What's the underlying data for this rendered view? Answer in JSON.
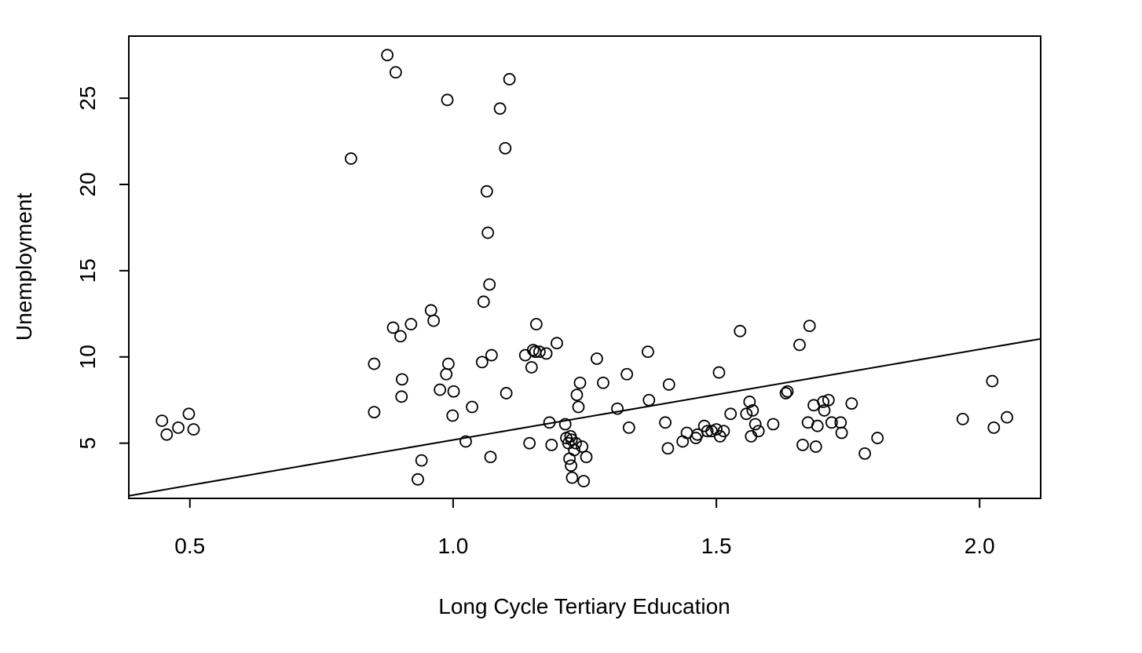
{
  "chart_data": {
    "type": "scatter",
    "title": "",
    "xlabel": "Long Cycle Tertiary Education",
    "ylabel": "Unemployment",
    "xlim": [
      0.384,
      2.116
    ],
    "ylim": [
      1.8,
      28.6
    ],
    "xticks": [
      0.5,
      1.0,
      1.5,
      2.0
    ],
    "xtick_labels": [
      "0.5",
      "1.0",
      "1.5",
      "2.0"
    ],
    "yticks": [
      5,
      10,
      15,
      20,
      25
    ],
    "ytick_labels": [
      "5",
      "10",
      "15",
      "20",
      "25"
    ],
    "grid": false,
    "legend": "none",
    "marker": "open-circle",
    "colors": {
      "marker": "#000000",
      "line": "#000000",
      "axis": "#000000"
    },
    "regression_line": {
      "x": [
        0.384,
        2.116
      ],
      "y": [
        1.95,
        11.05
      ]
    },
    "points": [
      {
        "x": 0.447,
        "y": 6.3
      },
      {
        "x": 0.456,
        "y": 5.5
      },
      {
        "x": 0.478,
        "y": 5.9
      },
      {
        "x": 0.498,
        "y": 6.7
      },
      {
        "x": 0.507,
        "y": 5.8
      },
      {
        "x": 0.806,
        "y": 21.5
      },
      {
        "x": 0.85,
        "y": 9.6
      },
      {
        "x": 0.85,
        "y": 6.8
      },
      {
        "x": 0.875,
        "y": 27.5
      },
      {
        "x": 0.886,
        "y": 11.7
      },
      {
        "x": 0.891,
        "y": 26.5
      },
      {
        "x": 0.9,
        "y": 11.2
      },
      {
        "x": 0.902,
        "y": 7.7
      },
      {
        "x": 0.903,
        "y": 8.7
      },
      {
        "x": 0.92,
        "y": 11.9
      },
      {
        "x": 0.933,
        "y": 2.9
      },
      {
        "x": 0.94,
        "y": 4.0
      },
      {
        "x": 0.958,
        "y": 12.7
      },
      {
        "x": 0.963,
        "y": 12.1
      },
      {
        "x": 0.975,
        "y": 8.1
      },
      {
        "x": 0.987,
        "y": 9.0
      },
      {
        "x": 0.989,
        "y": 24.9
      },
      {
        "x": 0.991,
        "y": 9.6
      },
      {
        "x": 0.999,
        "y": 6.6
      },
      {
        "x": 1.001,
        "y": 8.0
      },
      {
        "x": 1.024,
        "y": 5.1
      },
      {
        "x": 1.036,
        "y": 7.1
      },
      {
        "x": 1.055,
        "y": 9.7
      },
      {
        "x": 1.058,
        "y": 13.2
      },
      {
        "x": 1.064,
        "y": 19.6
      },
      {
        "x": 1.066,
        "y": 17.2
      },
      {
        "x": 1.069,
        "y": 14.2
      },
      {
        "x": 1.071,
        "y": 4.2
      },
      {
        "x": 1.073,
        "y": 10.1
      },
      {
        "x": 1.089,
        "y": 24.4
      },
      {
        "x": 1.099,
        "y": 22.1
      },
      {
        "x": 1.101,
        "y": 7.9
      },
      {
        "x": 1.107,
        "y": 26.1
      },
      {
        "x": 1.137,
        "y": 10.1
      },
      {
        "x": 1.145,
        "y": 5.0
      },
      {
        "x": 1.149,
        "y": 9.4
      },
      {
        "x": 1.152,
        "y": 10.4
      },
      {
        "x": 1.156,
        "y": 10.3
      },
      {
        "x": 1.158,
        "y": 11.9
      },
      {
        "x": 1.164,
        "y": 10.3
      },
      {
        "x": 1.177,
        "y": 10.2
      },
      {
        "x": 1.183,
        "y": 6.2
      },
      {
        "x": 1.187,
        "y": 4.9
      },
      {
        "x": 1.197,
        "y": 10.8
      },
      {
        "x": 1.213,
        "y": 6.1
      },
      {
        "x": 1.215,
        "y": 5.3
      },
      {
        "x": 1.219,
        "y": 5.0
      },
      {
        "x": 1.221,
        "y": 4.1
      },
      {
        "x": 1.223,
        "y": 5.4
      },
      {
        "x": 1.224,
        "y": 3.7
      },
      {
        "x": 1.225,
        "y": 5.2
      },
      {
        "x": 1.226,
        "y": 3.0
      },
      {
        "x": 1.23,
        "y": 4.6
      },
      {
        "x": 1.233,
        "y": 5.0
      },
      {
        "x": 1.235,
        "y": 7.8
      },
      {
        "x": 1.238,
        "y": 7.1
      },
      {
        "x": 1.241,
        "y": 8.5
      },
      {
        "x": 1.245,
        "y": 4.8
      },
      {
        "x": 1.248,
        "y": 2.8
      },
      {
        "x": 1.253,
        "y": 4.2
      },
      {
        "x": 1.273,
        "y": 9.9
      },
      {
        "x": 1.285,
        "y": 8.5
      },
      {
        "x": 1.312,
        "y": 7.0
      },
      {
        "x": 1.33,
        "y": 9.0
      },
      {
        "x": 1.334,
        "y": 5.9
      },
      {
        "x": 1.37,
        "y": 10.3
      },
      {
        "x": 1.372,
        "y": 7.5
      },
      {
        "x": 1.403,
        "y": 6.2
      },
      {
        "x": 1.408,
        "y": 4.7
      },
      {
        "x": 1.41,
        "y": 8.4
      },
      {
        "x": 1.436,
        "y": 5.1
      },
      {
        "x": 1.444,
        "y": 5.6
      },
      {
        "x": 1.461,
        "y": 5.3
      },
      {
        "x": 1.464,
        "y": 5.5
      },
      {
        "x": 1.477,
        "y": 6.0
      },
      {
        "x": 1.483,
        "y": 5.7
      },
      {
        "x": 1.491,
        "y": 5.7
      },
      {
        "x": 1.5,
        "y": 5.8
      },
      {
        "x": 1.505,
        "y": 9.1
      },
      {
        "x": 1.507,
        "y": 5.4
      },
      {
        "x": 1.514,
        "y": 5.7
      },
      {
        "x": 1.527,
        "y": 6.7
      },
      {
        "x": 1.545,
        "y": 11.5
      },
      {
        "x": 1.557,
        "y": 6.7
      },
      {
        "x": 1.563,
        "y": 7.4
      },
      {
        "x": 1.566,
        "y": 5.4
      },
      {
        "x": 1.569,
        "y": 6.9
      },
      {
        "x": 1.574,
        "y": 6.1
      },
      {
        "x": 1.58,
        "y": 5.7
      },
      {
        "x": 1.608,
        "y": 6.1
      },
      {
        "x": 1.632,
        "y": 7.9
      },
      {
        "x": 1.635,
        "y": 8.0
      },
      {
        "x": 1.658,
        "y": 10.7
      },
      {
        "x": 1.664,
        "y": 4.9
      },
      {
        "x": 1.674,
        "y": 6.2
      },
      {
        "x": 1.677,
        "y": 11.8
      },
      {
        "x": 1.685,
        "y": 7.2
      },
      {
        "x": 1.689,
        "y": 4.8
      },
      {
        "x": 1.692,
        "y": 6.0
      },
      {
        "x": 1.703,
        "y": 7.4
      },
      {
        "x": 1.705,
        "y": 6.9
      },
      {
        "x": 1.713,
        "y": 7.5
      },
      {
        "x": 1.719,
        "y": 6.2
      },
      {
        "x": 1.736,
        "y": 6.2
      },
      {
        "x": 1.738,
        "y": 5.6
      },
      {
        "x": 1.757,
        "y": 7.3
      },
      {
        "x": 1.782,
        "y": 4.4
      },
      {
        "x": 1.806,
        "y": 5.3
      },
      {
        "x": 1.968,
        "y": 6.4
      },
      {
        "x": 2.024,
        "y": 8.6
      },
      {
        "x": 2.027,
        "y": 5.9
      },
      {
        "x": 2.052,
        "y": 6.5
      }
    ]
  }
}
